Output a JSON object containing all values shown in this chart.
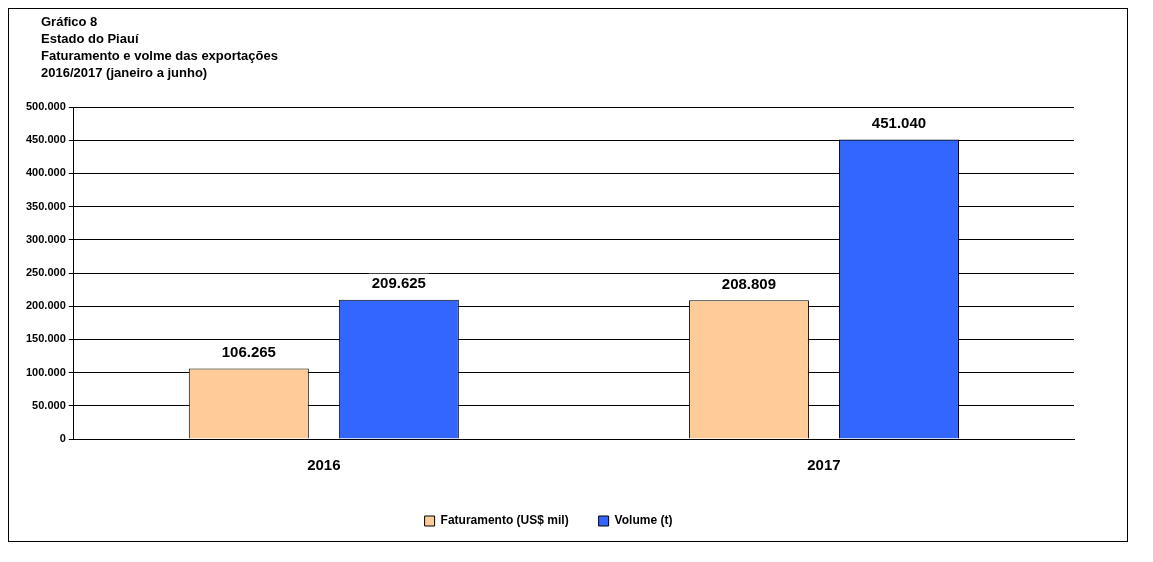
{
  "chart_data": {
    "type": "bar",
    "title": "Gráfico 8",
    "subtitle": "Estado do Piauí\nFaturamento e volme das exportações\n2016/2017 (janeiro a junho)",
    "categories": [
      "2016",
      "2017"
    ],
    "series": [
      {
        "name": "Faturamento (US$ mil)",
        "color": "#ffcc99",
        "values": [
          106265,
          208809
        ],
        "value_labels": [
          "106.265",
          "208.809"
        ]
      },
      {
        "name": "Volume (t)",
        "color": "#3366ff",
        "values": [
          209625,
          451040
        ],
        "value_labels": [
          "209.625",
          "451.040"
        ]
      }
    ],
    "ylim": [
      0,
      500000
    ],
    "yticks": [
      {
        "value": 0,
        "label": "0"
      },
      {
        "value": 50000,
        "label": "50.000"
      },
      {
        "value": 100000,
        "label": "100.000"
      },
      {
        "value": 150000,
        "label": "150.000"
      },
      {
        "value": 200000,
        "label": "200.000"
      },
      {
        "value": 250000,
        "label": "250.000"
      },
      {
        "value": 300000,
        "label": "300.000"
      },
      {
        "value": 350000,
        "label": "350.000"
      },
      {
        "value": 400000,
        "label": "400.000"
      },
      {
        "value": 450000,
        "label": "450.000"
      },
      {
        "value": 500000,
        "label": "500.000"
      }
    ],
    "grid": "y",
    "legend": "bottom"
  }
}
